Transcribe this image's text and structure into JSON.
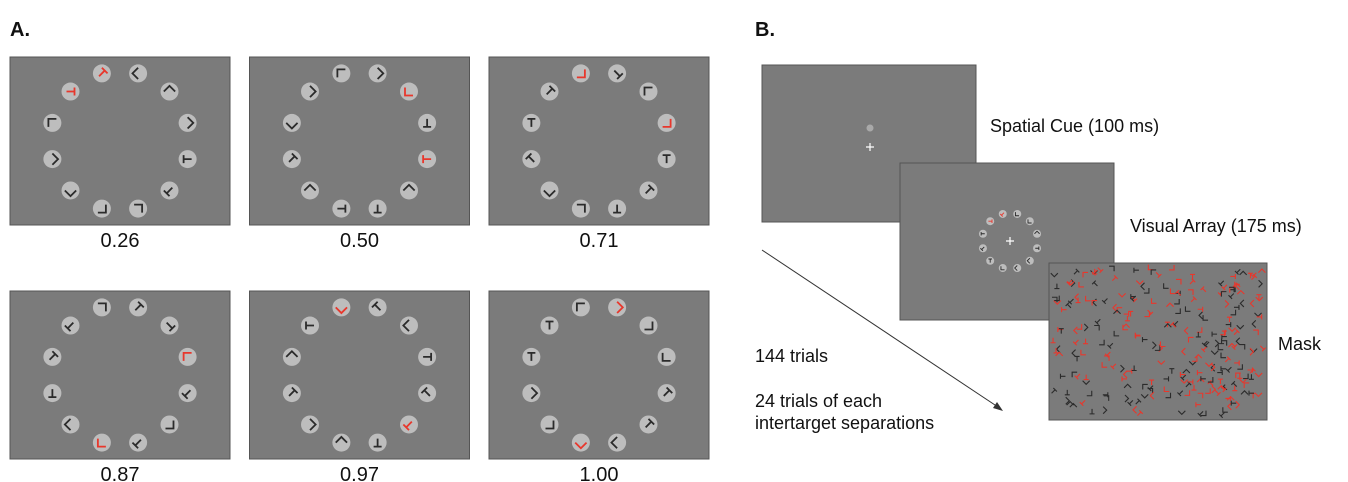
{
  "panel_a": {
    "label": "A.",
    "displays": [
      {
        "label": "0.26"
      },
      {
        "label": "0.50"
      },
      {
        "label": "0.71"
      },
      {
        "label": "0.87"
      },
      {
        "label": "0.97"
      },
      {
        "label": "1.00"
      }
    ]
  },
  "panel_b": {
    "label": "B.",
    "screens": [
      {
        "label": "Spatial Cue (100 ms)"
      },
      {
        "label": "Visual Array (175 ms)"
      },
      {
        "label": "Mask"
      }
    ],
    "notes": [
      "144 trials",
      "24 trials of each intertarget separations"
    ]
  }
}
